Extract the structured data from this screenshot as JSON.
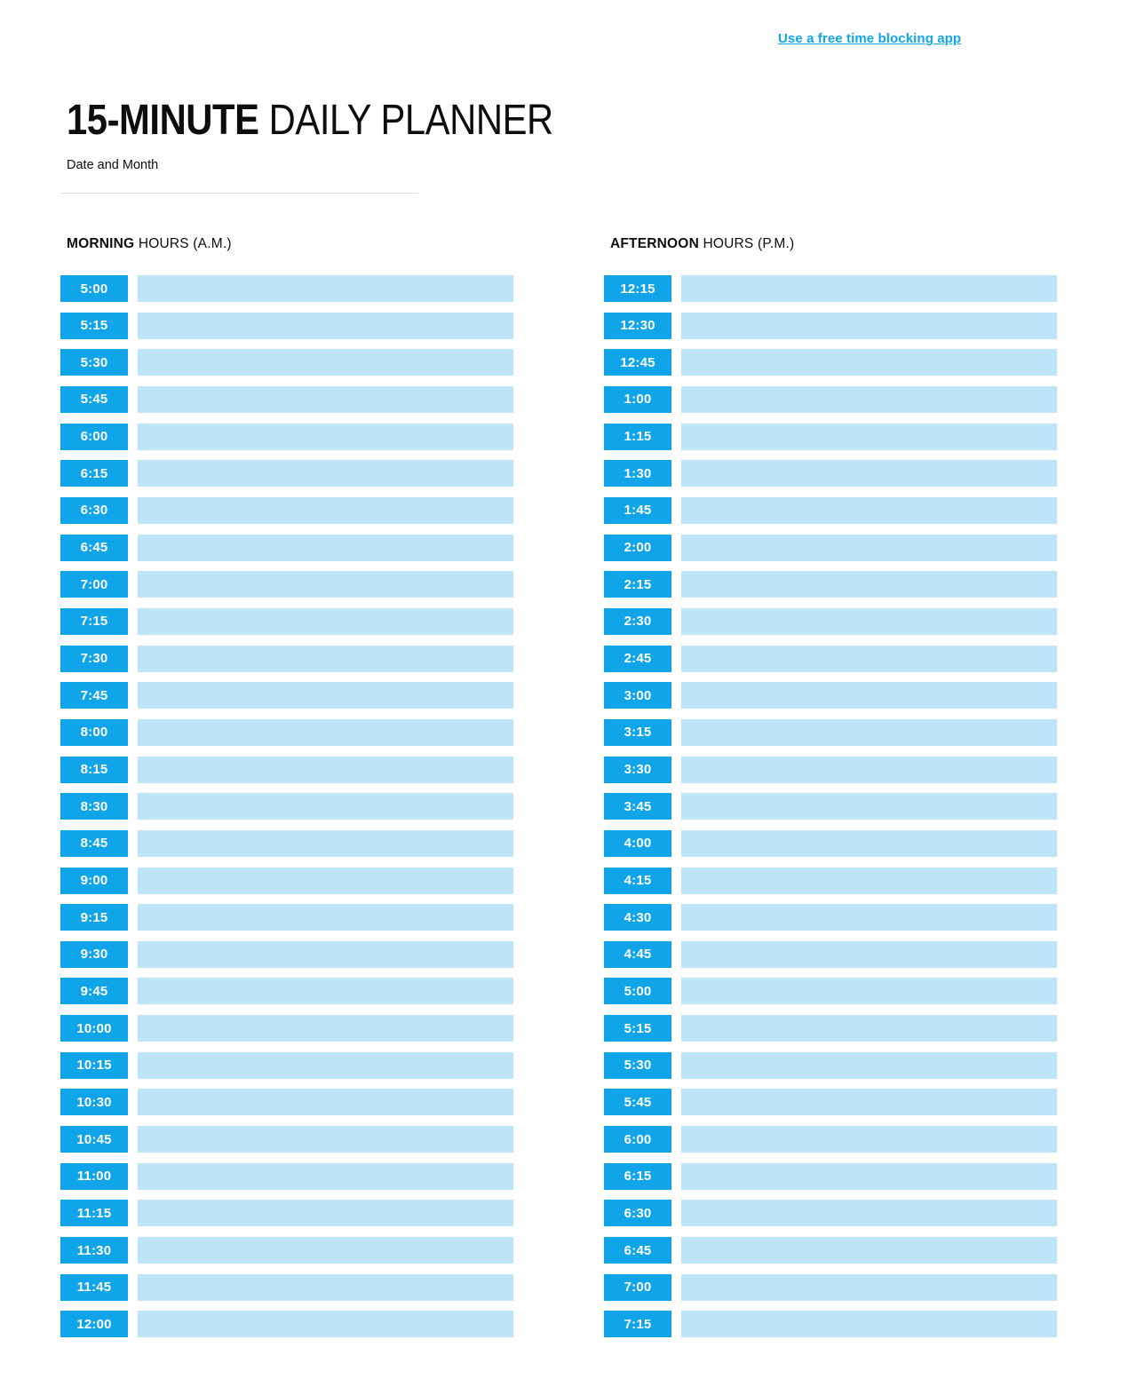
{
  "link": {
    "label": "Use a free time blocking app"
  },
  "title": {
    "bold": "15-MINUTE",
    "regular": " DAILY PLANNER"
  },
  "date_field": {
    "label": "Date and Month"
  },
  "colors": {
    "accent": "#10a5e8",
    "slot_fill": "#bee4f9",
    "divider": "#d9dcde"
  },
  "columns": [
    {
      "heading_bold": "MORNING",
      "heading_rest": " HOURS (A.M.)",
      "times": [
        "5:00",
        "5:15",
        "5:30",
        "5:45",
        "6:00",
        "6:15",
        "6:30",
        "6:45",
        "7:00",
        "7:15",
        "7:30",
        "7:45",
        "8:00",
        "8:15",
        "8:30",
        "8:45",
        "9:00",
        "9:15",
        "9:30",
        "9:45",
        "10:00",
        "10:15",
        "10:30",
        "10:45",
        "11:00",
        "11:15",
        "11:30",
        "11:45",
        "12:00"
      ]
    },
    {
      "heading_bold": "AFTERNOON",
      "heading_rest": " HOURS (P.M.)",
      "times": [
        "12:15",
        "12:30",
        "12:45",
        "1:00",
        "1:15",
        "1:30",
        "1:45",
        "2:00",
        "2:15",
        "2:30",
        "2:45",
        "3:00",
        "3:15",
        "3:30",
        "3:45",
        "4:00",
        "4:15",
        "4:30",
        "4:45",
        "5:00",
        "5:15",
        "5:30",
        "5:45",
        "6:00",
        "6:15",
        "6:30",
        "6:45",
        "7:00",
        "7:15"
      ]
    }
  ]
}
